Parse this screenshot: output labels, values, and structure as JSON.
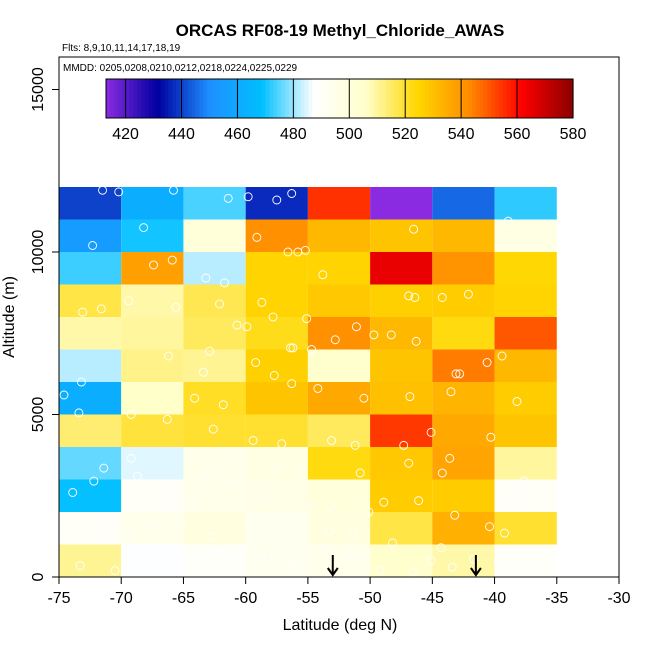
{
  "chart_data": {
    "type": "heatmap",
    "title": "ORCAS RF08-19 Methyl_Chloride_AWAS",
    "flights_note": "Flts: 8,9,10,11,14,17,18,19",
    "dates_note": "MMDD: 0205,0208,0210,0212,0218,0224,0225,0229",
    "xlabel": "Latitude (deg N)",
    "ylabel": "Altitude (m)",
    "xlim": [
      -75,
      -30
    ],
    "ylim": [
      0,
      16000
    ],
    "x_ticks": [
      "-75",
      "-70",
      "-65",
      "-60",
      "-55",
      "-50",
      "-45",
      "-40",
      "-35",
      "-30"
    ],
    "y_ticks": [
      "0",
      "5000",
      "10000",
      "15000"
    ],
    "colorbar": {
      "min": 413,
      "max": 580,
      "ticks": [
        "420",
        "440",
        "460",
        "480",
        "500",
        "520",
        "540",
        "560",
        "580"
      ],
      "stops": [
        "#8a2be2",
        "#0000a0",
        "#1e90ff",
        "#00bfff",
        "#ffffff",
        "#ffffcc",
        "#ffd700",
        "#ff8c00",
        "#ff0000",
        "#8b0000"
      ]
    },
    "lat_bin_edges": [
      -75,
      -70,
      -65,
      -60,
      -55,
      -50,
      -45,
      -40,
      -35
    ],
    "alt_bin_edges": [
      0,
      1000,
      2000,
      3000,
      4000,
      5000,
      6000,
      7000,
      8000,
      9000,
      10000,
      11000,
      12000
    ],
    "values": [
      [
        511,
        487,
        489,
        493,
        494,
        505,
        509,
        489
      ],
      [
        490,
        494,
        499,
        493,
        499,
        518,
        534,
        520
      ],
      [
        469,
        490,
        495,
        496,
        500,
        527,
        527,
        490
      ],
      [
        476,
        485,
        495,
        497,
        523,
        528,
        537,
        510
      ],
      [
        514,
        519,
        520,
        520,
        516,
        554,
        536,
        529
      ],
      [
        462,
        506,
        521,
        529,
        536,
        530,
        533,
        527
      ],
      [
        482,
        512,
        511,
        526,
        505,
        529,
        545,
        532
      ],
      [
        509,
        510,
        516,
        522,
        542,
        532,
        523,
        550
      ],
      [
        518,
        509,
        517,
        525,
        528,
        526,
        527,
        525
      ],
      [
        473,
        538,
        482,
        525,
        525,
        565,
        541,
        524
      ],
      [
        455,
        470,
        501,
        542,
        532,
        529,
        532,
        497
      ],
      [
        440,
        462,
        474,
        437,
        555,
        413,
        445,
        472
      ]
    ],
    "sample_points": [
      [
        -71.5,
        11900
      ],
      [
        -70.2,
        11850
      ],
      [
        -65.8,
        11900
      ],
      [
        -61.4,
        11650
      ],
      [
        -59.8,
        11700
      ],
      [
        -57.5,
        11600
      ],
      [
        -56.3,
        11800
      ],
      [
        -46.5,
        10700
      ],
      [
        -38.9,
        10950
      ],
      [
        -68.2,
        10750
      ],
      [
        -72.3,
        10200
      ],
      [
        -55.2,
        10050
      ],
      [
        -55.8,
        10000
      ],
      [
        -56.6,
        10000
      ],
      [
        -59.1,
        10450
      ],
      [
        -65.9,
        9750
      ],
      [
        -67.4,
        9600
      ],
      [
        -63.2,
        9200
      ],
      [
        -61.7,
        9050
      ],
      [
        -53.8,
        9300
      ],
      [
        -46.9,
        8650
      ],
      [
        -46.4,
        8600
      ],
      [
        -44.2,
        8600
      ],
      [
        -42.1,
        8700
      ],
      [
        -73.1,
        8150
      ],
      [
        -71.6,
        8250
      ],
      [
        -69.4,
        8500
      ],
      [
        -65.6,
        8300
      ],
      [
        -62.1,
        8400
      ],
      [
        -58.7,
        8450
      ],
      [
        -57.8,
        8000
      ],
      [
        -55.1,
        7950
      ],
      [
        -60.7,
        7750
      ],
      [
        -59.9,
        7700
      ],
      [
        -52.8,
        7300
      ],
      [
        -51.1,
        7700
      ],
      [
        -49.7,
        7450
      ],
      [
        -48.3,
        7450
      ],
      [
        -46.3,
        7250
      ],
      [
        -56.4,
        7050
      ],
      [
        -56.2,
        7050
      ],
      [
        -54.7,
        7000
      ],
      [
        -62.9,
        6950
      ],
      [
        -66.2,
        6800
      ],
      [
        -63.4,
        6300
      ],
      [
        -57.7,
        6200
      ],
      [
        -59.2,
        6600
      ],
      [
        -43.1,
        6250
      ],
      [
        -42.8,
        6250
      ],
      [
        -40.6,
        6600
      ],
      [
        -39.4,
        6800
      ],
      [
        -73.2,
        6000
      ],
      [
        -74.6,
        5600
      ],
      [
        -64.1,
        5500
      ],
      [
        -61.8,
        5300
      ],
      [
        -56.3,
        5950
      ],
      [
        -54.2,
        5800
      ],
      [
        -50.5,
        5500
      ],
      [
        -46.8,
        5550
      ],
      [
        -43.5,
        5700
      ],
      [
        -38.2,
        5400
      ],
      [
        -73.4,
        5050
      ],
      [
        -69.2,
        5000
      ],
      [
        -66.3,
        4850
      ],
      [
        -62.6,
        4550
      ],
      [
        -59.4,
        4200
      ],
      [
        -57.1,
        4100
      ],
      [
        -53.1,
        4200
      ],
      [
        -51.2,
        4050
      ],
      [
        -47.3,
        4050
      ],
      [
        -45.1,
        4450
      ],
      [
        -40.3,
        4300
      ],
      [
        -43.6,
        3650
      ],
      [
        -46.9,
        3500
      ],
      [
        -44.2,
        3200
      ],
      [
        -50.8,
        3200
      ],
      [
        -55.8,
        3200
      ],
      [
        -57.4,
        3300
      ],
      [
        -60.2,
        3500
      ],
      [
        -63.3,
        3100
      ],
      [
        -68.7,
        3100
      ],
      [
        -69.2,
        3650
      ],
      [
        -71.4,
        3350
      ],
      [
        -73.9,
        2600
      ],
      [
        -72.2,
        2950
      ],
      [
        -66.6,
        2550
      ],
      [
        -64.4,
        2300
      ],
      [
        -61.2,
        2850
      ],
      [
        -58.5,
        2450
      ],
      [
        -54.7,
        2200
      ],
      [
        -53.2,
        2150
      ],
      [
        -50.1,
        2000
      ],
      [
        -48.9,
        2300
      ],
      [
        -46.1,
        2350
      ],
      [
        -43.2,
        1900
      ],
      [
        -38.6,
        2200
      ],
      [
        -37.6,
        2950
      ],
      [
        -71.2,
        1450
      ],
      [
        -69.5,
        1300
      ],
      [
        -67.4,
        1550
      ],
      [
        -65.2,
        1700
      ],
      [
        -62.8,
        1250
      ],
      [
        -59.6,
        1600
      ],
      [
        -56.7,
        1200
      ],
      [
        -53.3,
        1400
      ],
      [
        -51.4,
        1300
      ],
      [
        -48.2,
        1050
      ],
      [
        -44.3,
        900
      ],
      [
        -40.4,
        1550
      ],
      [
        -39.2,
        1350
      ],
      [
        -73.3,
        350
      ],
      [
        -70.5,
        200
      ],
      [
        -69.2,
        150
      ],
      [
        -67.8,
        250
      ],
      [
        -65.9,
        150
      ],
      [
        -63.6,
        400
      ],
      [
        -62.1,
        750
      ],
      [
        -60.9,
        300
      ],
      [
        -59.3,
        550
      ],
      [
        -58.2,
        600
      ],
      [
        -56.4,
        400
      ],
      [
        -55.8,
        250
      ],
      [
        -53.6,
        900
      ],
      [
        -51.6,
        650
      ],
      [
        -49.2,
        200
      ],
      [
        -46.6,
        150
      ],
      [
        -45.1,
        500
      ],
      [
        -43.4,
        300
      ],
      [
        -41.7,
        550
      ],
      [
        -39.7,
        450
      ],
      [
        -36.6,
        300
      ]
    ],
    "arrow_latitudes": [
      -53,
      -41.5
    ]
  }
}
